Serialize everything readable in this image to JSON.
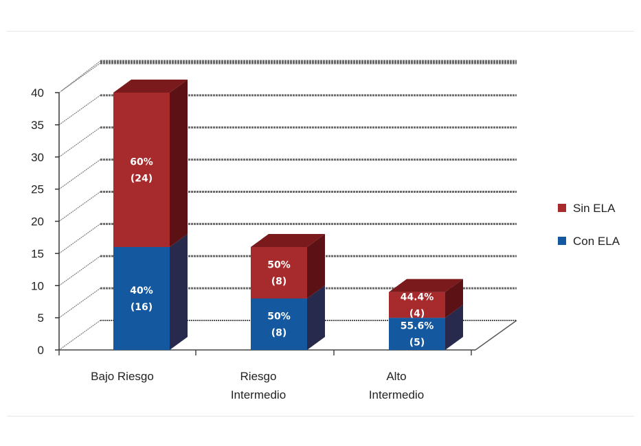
{
  "chart_data": {
    "type": "bar",
    "stacked": true,
    "three_d": true,
    "categories": [
      [
        "Bajo Riesgo"
      ],
      [
        "Riesgo",
        "Intermedio"
      ],
      [
        "Alto",
        "Intermedio"
      ]
    ],
    "series": [
      {
        "name": "Con ELA",
        "values": [
          16,
          8,
          5
        ],
        "labels": [
          [
            "40%",
            "(16)"
          ],
          [
            "50%",
            "(8)"
          ],
          [
            "55.6%",
            "(5)"
          ]
        ]
      },
      {
        "name": "Sin ELA",
        "values": [
          24,
          8,
          4
        ],
        "labels": [
          [
            "60%",
            "(24)"
          ],
          [
            "50%",
            "(8)"
          ],
          [
            "44.4%",
            "(4)"
          ]
        ]
      }
    ],
    "yticks": [
      0,
      5,
      10,
      15,
      20,
      25,
      30,
      35,
      40
    ],
    "ylim": [
      0,
      40
    ],
    "grid": true,
    "legend_position": "right",
    "legend_order": [
      "Sin ELA",
      "Con ELA"
    ],
    "colors": {
      "Con ELA": {
        "front": "#14589f",
        "side": "#272a4c",
        "top": "#1d4a86"
      },
      "Sin ELA": {
        "front": "#a72a2c",
        "side": "#5c1214",
        "top": "#7a1a1c"
      }
    }
  }
}
